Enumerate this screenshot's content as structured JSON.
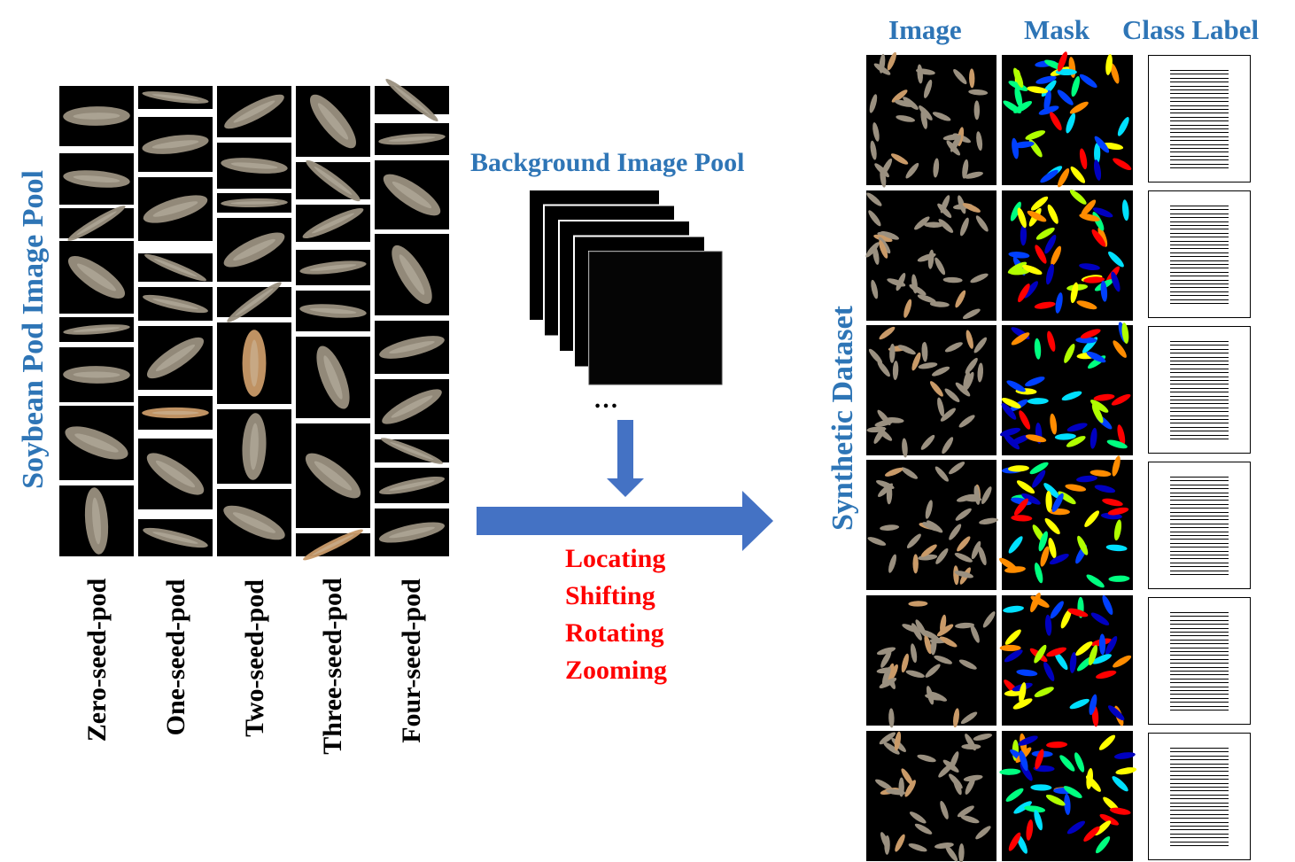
{
  "left_panel": {
    "title": "Soybean Pod Image Pool",
    "classes": [
      "Zero-seed-pod",
      "One-seed-pod",
      "Two-seed-pod",
      "Three-seed-pod",
      "Four-seed-pod"
    ]
  },
  "middle": {
    "bg_pool_title": "Background Image Pool",
    "ellipsis": "…",
    "operations": [
      "Locating",
      "Shifting",
      "Rotating",
      "Zooming"
    ]
  },
  "right_panel": {
    "title": "Synthetic Dataset",
    "column_headers": [
      "Image",
      "Mask",
      "Class Label"
    ],
    "row_count": 6
  },
  "colors": {
    "blue_text": "#2e75b6",
    "red_text": "#ff0000",
    "arrow_fill": "#4472c4",
    "pod_tone": "#9a9080",
    "pod_tan": "#c99a68",
    "mask_palette": [
      "#ff0000",
      "#ff8c00",
      "#ffff00",
      "#00e0ff",
      "#0040ff",
      "#00ff80",
      "#0000c0",
      "#b0ff00"
    ]
  }
}
